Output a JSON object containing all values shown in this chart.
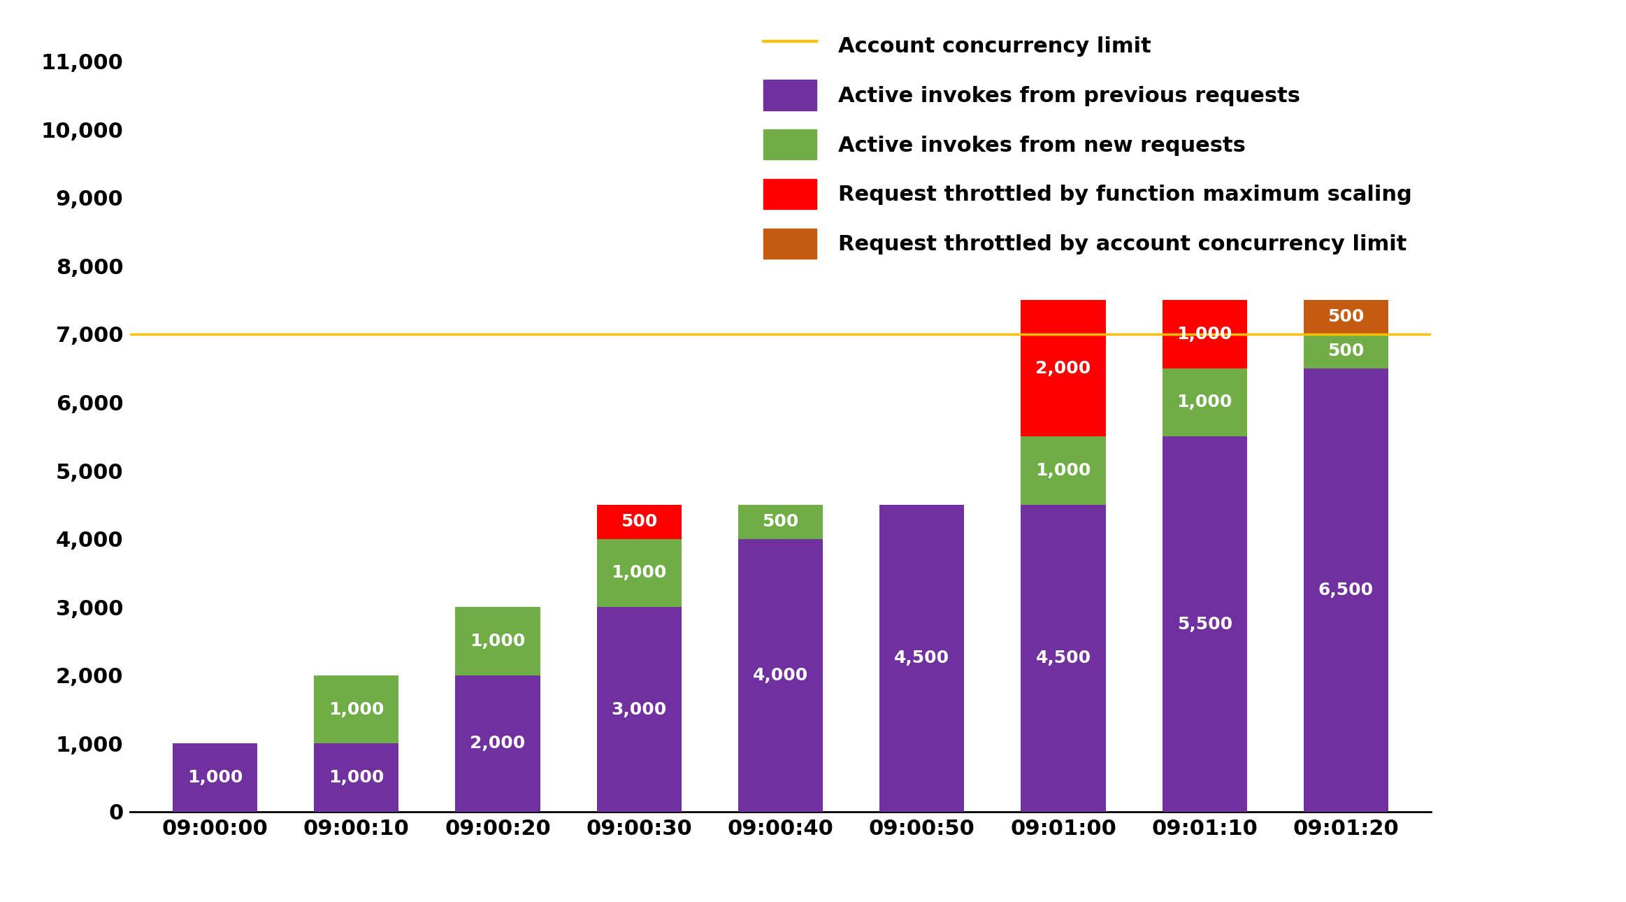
{
  "categories": [
    "09:00:00",
    "09:00:10",
    "09:00:20",
    "09:00:30",
    "09:00:40",
    "09:00:50",
    "09:01:00",
    "09:01:10",
    "09:01:20"
  ],
  "purple_values": [
    1000,
    1000,
    2000,
    3000,
    4000,
    4500,
    4500,
    5500,
    6500
  ],
  "green_values": [
    0,
    1000,
    1000,
    1000,
    500,
    0,
    1000,
    1000,
    500
  ],
  "red_values": [
    0,
    0,
    0,
    500,
    0,
    0,
    2000,
    1000,
    0
  ],
  "orange_values": [
    0,
    0,
    0,
    0,
    0,
    0,
    0,
    0,
    500
  ],
  "purple_labels": [
    "1,000",
    "1,000",
    "2,000",
    "3,000",
    "4,000",
    "4,500",
    "4,500",
    "5,500",
    "6,500"
  ],
  "green_labels": [
    "",
    "1,000",
    "1,000",
    "1,000",
    "500",
    "",
    "1,000",
    "1,000",
    "500"
  ],
  "red_labels": [
    "",
    "",
    "",
    "500",
    "",
    "",
    "2,000",
    "1,000",
    ""
  ],
  "orange_labels": [
    "",
    "",
    "",
    "",
    "",
    "",
    "",
    "",
    "500"
  ],
  "purple_color": "#7030A0",
  "green_color": "#70AD47",
  "red_color": "#FF0000",
  "orange_color": "#C55A11",
  "gold_color": "#FFC000",
  "concurrency_limit": 7000,
  "ylim": [
    0,
    11500
  ],
  "yticks": [
    0,
    1000,
    2000,
    3000,
    4000,
    5000,
    6000,
    7000,
    8000,
    9000,
    10000,
    11000
  ],
  "ytick_labels": [
    "0",
    "1,000",
    "2,000",
    "3,000",
    "4,000",
    "5,000",
    "6,000",
    "7,000",
    "8,000",
    "9,000",
    "10,000",
    "11,000"
  ],
  "legend_labels": [
    "Account concurrency limit",
    "Active invokes from previous requests",
    "Active invokes from new requests",
    "Request throttled by function maximum scaling",
    "Request throttled by account concurrency limit"
  ],
  "background_color": "#FFFFFF",
  "bar_width": 0.6,
  "label_fontsize": 18,
  "tick_fontsize": 22,
  "legend_fontsize": 22
}
